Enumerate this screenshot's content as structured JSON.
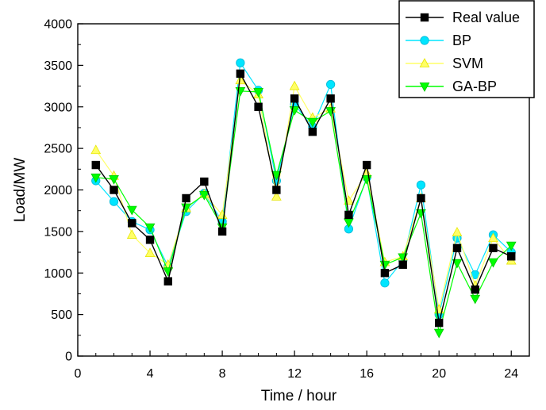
{
  "chart_data": {
    "type": "line",
    "title": "",
    "xlabel": "Time / hour",
    "ylabel": "Load/MW",
    "xlim": [
      0,
      25
    ],
    "ylim": [
      0,
      4000
    ],
    "x_ticks": [
      0,
      4,
      8,
      12,
      16,
      20,
      24
    ],
    "x_tick_labels": [
      "0",
      "4",
      "8",
      "12",
      "16",
      "20",
      "24"
    ],
    "y_ticks": [
      0,
      500,
      1000,
      1500,
      2000,
      2500,
      3000,
      3500,
      4000
    ],
    "y_tick_labels": [
      "0",
      "500",
      "1000",
      "1500",
      "2000",
      "2500",
      "3000",
      "3500",
      "4000"
    ],
    "grid": false,
    "legend_position": "top-right",
    "x": [
      1,
      2,
      3,
      4,
      5,
      6,
      7,
      8,
      9,
      10,
      11,
      12,
      13,
      14,
      15,
      16,
      17,
      18,
      19,
      20,
      21,
      22,
      23,
      24
    ],
    "series": [
      {
        "name": "Real value",
        "color": "#000000",
        "marker": "square",
        "values": [
          2300,
          2000,
          1600,
          1400,
          900,
          1900,
          2100,
          1500,
          3400,
          3000,
          2000,
          3100,
          2700,
          3100,
          1700,
          2300,
          1000,
          1100,
          1900,
          400,
          1300,
          800,
          1300,
          1200
        ]
      },
      {
        "name": "BP",
        "color": "#00e5ff",
        "marker": "circle",
        "values": [
          2110,
          1860,
          1620,
          1520,
          1080,
          1740,
          1960,
          1620,
          3530,
          3200,
          2110,
          3030,
          2760,
          3270,
          1530,
          2150,
          880,
          1150,
          2060,
          500,
          1420,
          980,
          1460,
          1250
        ]
      },
      {
        "name": "SVM",
        "color": "#ffff66",
        "marker": "triangle-up",
        "values": [
          2480,
          2170,
          1460,
          1240,
          1100,
          1780,
          1950,
          1700,
          3320,
          3150,
          1920,
          3250,
          2870,
          2980,
          1870,
          2200,
          1130,
          1200,
          1900,
          560,
          1490,
          850,
          1420,
          1150
        ]
      },
      {
        "name": "GA-BP",
        "color": "#00ff00",
        "marker": "triangle-down",
        "values": [
          2150,
          2130,
          1760,
          1550,
          1020,
          1790,
          1940,
          1550,
          3190,
          3180,
          2180,
          2960,
          2820,
          2950,
          1610,
          2130,
          1100,
          1190,
          1720,
          280,
          1120,
          690,
          1130,
          1330
        ]
      }
    ]
  }
}
